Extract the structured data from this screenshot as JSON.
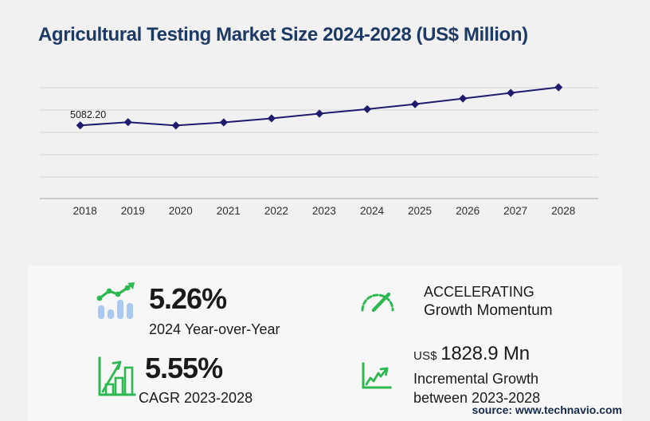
{
  "title": "Agricultural Testing Market Size 2024-2028 (US$ Million)",
  "source": "source: www.technavio.com",
  "chart_data": {
    "type": "line",
    "title": "Agricultural Testing Market Size 2024-2028 (US$ Million)",
    "x": [
      2018,
      2019,
      2020,
      2021,
      2022,
      2023,
      2024,
      2025,
      2026,
      2027,
      2028
    ],
    "series": [
      {
        "name": "Market size (US$ Million)",
        "values": [
          5082.2,
          5310,
          5075,
          5290,
          5570,
          5899.7,
          6210.0,
          6560,
          6950,
          7340,
          7728.6
        ]
      }
    ],
    "point_label": {
      "x": 2018,
      "text": "5082.20"
    },
    "ylim": [
      0,
      8200
    ],
    "grid": "horizontal",
    "legend": "none",
    "marker": "diamond",
    "line_color": "#1f1b6e"
  },
  "stats": [
    {
      "id": "yoy",
      "icon": "bar-chart-trend-icon",
      "value": "5.26%",
      "label": "2024 Year-over-Year"
    },
    {
      "id": "momentum",
      "icon": "gauge-icon",
      "line1": "ACCELERATING",
      "line2": "Growth Momentum"
    },
    {
      "id": "cagr",
      "icon": "bar-growth-icon",
      "value": "5.55%",
      "label": "CAGR 2023-2028"
    },
    {
      "id": "incremental",
      "icon": "line-growth-icon",
      "currency": "US$",
      "value": "1828.9 Mn",
      "label_line1": "Incremental Growth",
      "label_line2": "between 2023-2028"
    }
  ],
  "colors": {
    "title_navy": "#1d3a64",
    "line_indigo": "#1f1b6e",
    "accent_green": "#2eb851",
    "bar_blue": "#a9c9f2",
    "gridline_gray": "#d5d5d5",
    "axis_gray": "#b3b3b3",
    "panel_bg": "#f7f7f8",
    "page_bg": "#f1f1f2",
    "source_navy": "#14294d",
    "text_dark": "#1a1a1a"
  }
}
